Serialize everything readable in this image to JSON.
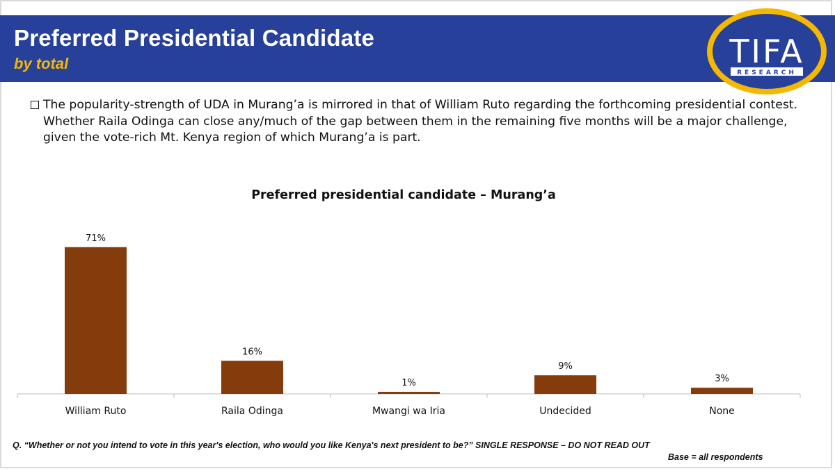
{
  "header": {
    "title": "Preferred Presidential Candidate",
    "subtitle": "by total",
    "background_color": "#27409a",
    "subtitle_color": "#f5b800"
  },
  "logo": {
    "text": "TIFA",
    "subtext": "RESEARCH",
    "icon": "tifa-research-logo",
    "ring_color": "#f5b800"
  },
  "bullet": {
    "icon": "checkbox-bullet-icon",
    "text": "The popularity-strength of UDA in Murang’a is mirrored in that of William Ruto regarding the forthcoming presidential contest.  Whether Raila Odinga can close any/much of the gap between them in the remaining five months will be a major challenge, given the vote-rich Mt. Kenya region of which Murang’a is part."
  },
  "chart_data": {
    "type": "bar",
    "title": "Preferred presidential candidate – Murang’a",
    "categories": [
      "William Ruto",
      "Raila Odinga",
      "Mwangi wa Iria",
      "Undecided",
      "None"
    ],
    "values": [
      71,
      16,
      1,
      9,
      3
    ],
    "value_labels": [
      "71%",
      "16%",
      "1%",
      "9%",
      "3%"
    ],
    "unit": "%",
    "ylim": [
      0,
      80
    ],
    "xlabel": "",
    "ylabel": "",
    "grid": false,
    "legend": "none",
    "bar_color": "#843c0c"
  },
  "footnote": {
    "question": "Q. “Whether or not you intend to vote in this year's election, who would you like Kenya's next president to be?” SINGLE     RESPONSE – DO NOT READ OUT",
    "base": "Base = all respondents"
  }
}
